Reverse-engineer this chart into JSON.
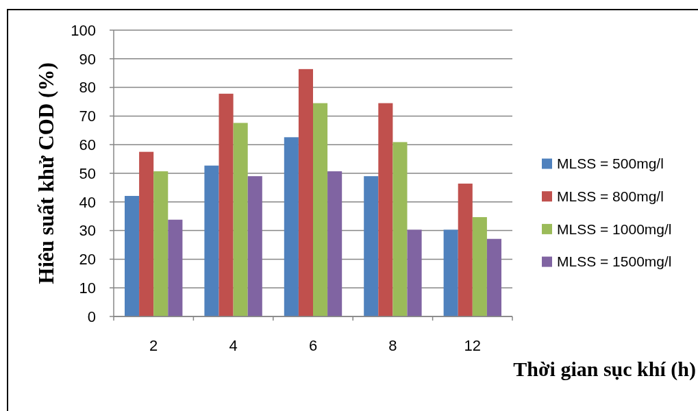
{
  "chart_data": {
    "type": "bar",
    "xlabel": "Thời gian sục khí (h)",
    "ylabel": "Hiêu suất khử COD (%)",
    "categories": [
      "2",
      "4",
      "6",
      "8",
      "12"
    ],
    "series": [
      {
        "name": "MLSS = 500mg/l",
        "color": "#4f81bd",
        "values": [
          42.1,
          52.7,
          62.6,
          49.0,
          30.3
        ]
      },
      {
        "name": "MLSS = 800mg/l",
        "color": "#c0504d",
        "values": [
          57.5,
          77.8,
          86.4,
          74.5,
          46.4
        ]
      },
      {
        "name": "MLSS = 1000mg/l",
        "color": "#9bbb59",
        "values": [
          50.7,
          67.6,
          74.5,
          60.9,
          34.7
        ]
      },
      {
        "name": "MLSS = 1500mg/l",
        "color": "#8064a2",
        "values": [
          33.8,
          49.0,
          50.7,
          30.3,
          27.1
        ]
      }
    ],
    "ylim": [
      0,
      100
    ],
    "yticks": [
      0,
      10,
      20,
      30,
      40,
      50,
      60,
      70,
      80,
      90,
      100
    ],
    "grid": "y",
    "legend": "right"
  }
}
